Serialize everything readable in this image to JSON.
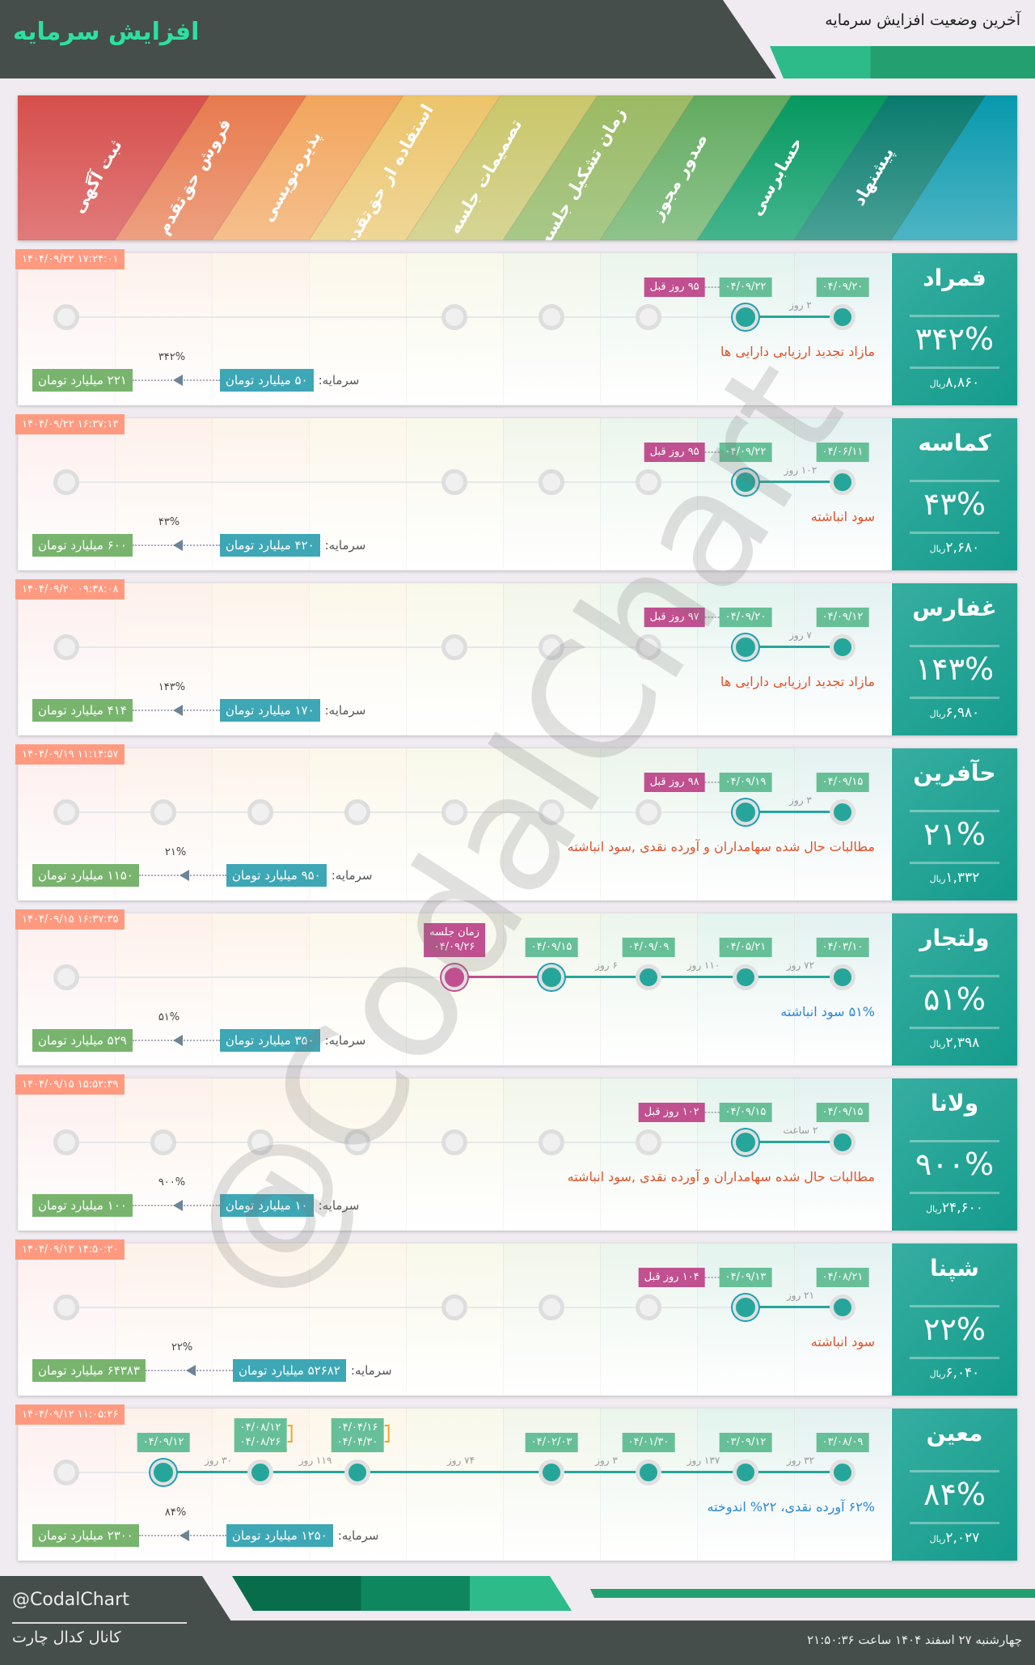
{
  "header": {
    "title": "افزایش سرمایه",
    "subtitle": "آخرین وضعیت افزایش سرمایه"
  },
  "stages": [
    "ثبت آگهی",
    "فروش حق‌تقدم",
    "پذیره‌نویسی",
    "استفاده از حق‌تقدم",
    "تصمیمات جلسه",
    "زمان تشکیل جلسه",
    "صدور مجوز",
    "حسابرسی",
    "پیشنهاد"
  ],
  "colors": {
    "done": "#26a69a",
    "meeting": "#c0508f",
    "date_label": "#67bf98",
    "timestamp": "#ff9a80",
    "capital_current": "#3ea7b6",
    "capital_final": "#78b46e",
    "desc_orange": "#e0522a",
    "desc_blue": "#2e86d4"
  },
  "capital_label": "سرمایه:",
  "currency": "ریال",
  "cards": [
    {
      "name": "فمراد",
      "percent": "۳۴۲%",
      "price": "۸,۸۶۰",
      "timestamp": "۱۴۰۴/۰۹/۲۲ ۱۷:۲۴:۰۱",
      "nodes": [
        "gray",
        "none",
        "none",
        "none",
        "gray",
        "gray",
        "gray",
        "current",
        "done"
      ],
      "labels": [
        {
          "stage": 8,
          "text": "۰۴/۰۹/۲۰"
        },
        {
          "stage": 7,
          "text": "۰۴/۰۹/۲۲",
          "badge": "۹۵ روز قبل"
        }
      ],
      "gaps": [
        {
          "from": 7,
          "to": 8,
          "text": "۲ روز"
        }
      ],
      "desc": "مازاد تجدید ارزیابی دارایی ها",
      "desc_color": "#e0522a",
      "capital_current": "۵۰ میلیارد تومان",
      "capital_final": "۲۲۱ میلیارد تومان",
      "capital_percent": "۳۴۲%"
    },
    {
      "name": "كماسه",
      "percent": "۴۳%",
      "price": "۲,۶۸۰",
      "timestamp": "۱۴۰۴/۰۹/۲۲ ۱۶:۳۷:۱۳",
      "nodes": [
        "gray",
        "none",
        "none",
        "none",
        "gray",
        "gray",
        "gray",
        "current",
        "done"
      ],
      "labels": [
        {
          "stage": 8,
          "text": "۰۴/۰۶/۱۱"
        },
        {
          "stage": 7,
          "text": "۰۴/۰۹/۲۲",
          "badge": "۹۵ روز قبل"
        }
      ],
      "gaps": [
        {
          "from": 7,
          "to": 8,
          "text": "۱۰۲ روز"
        }
      ],
      "desc": "سود انباشته",
      "desc_color": "#e0522a",
      "capital_current": "۴۲۰ میلیارد تومان",
      "capital_final": "۶۰۰ میلیارد تومان",
      "capital_percent": "۴۳%"
    },
    {
      "name": "غفارس",
      "percent": "۱۴۳%",
      "price": "۶,۹۸۰",
      "timestamp": "۱۴۰۴/۰۹/۲۰ ۰۹:۳۸:۰۸",
      "nodes": [
        "gray",
        "none",
        "none",
        "none",
        "gray",
        "gray",
        "gray",
        "current",
        "done"
      ],
      "labels": [
        {
          "stage": 8,
          "text": "۰۴/۰۹/۱۲"
        },
        {
          "stage": 7,
          "text": "۰۴/۰۹/۲۰",
          "badge": "۹۷ روز قبل"
        }
      ],
      "gaps": [
        {
          "from": 7,
          "to": 8,
          "text": "۷ روز"
        }
      ],
      "desc": "مازاد تجدید ارزیابی دارایی ها",
      "desc_color": "#e0522a",
      "capital_current": "۱۷۰ میلیارد تومان",
      "capital_final": "۴۱۴ میلیارد تومان",
      "capital_percent": "۱۴۳%"
    },
    {
      "name": "حآفرین",
      "percent": "۲۱%",
      "price": "۱,۳۳۲",
      "timestamp": "۱۴۰۴/۰۹/۱۹ ۱۱:۱۴:۵۷",
      "nodes": [
        "gray",
        "gray",
        "gray",
        "gray",
        "gray",
        "gray",
        "gray",
        "current",
        "done"
      ],
      "labels": [
        {
          "stage": 8,
          "text": "۰۴/۰۹/۱۵"
        },
        {
          "stage": 7,
          "text": "۰۴/۰۹/۱۹",
          "badge": "۹۸ روز قبل"
        }
      ],
      "gaps": [
        {
          "from": 7,
          "to": 8,
          "text": "۳ روز"
        }
      ],
      "desc": "مطالبات حال شده سهامداران و آورده نقدی ,سود انباشته",
      "desc_color": "#e0522a",
      "capital_current": "۹۵۰ میلیارد تومان",
      "capital_final": "۱۱۵۰ میلیارد تومان",
      "capital_percent": "۲۱%"
    },
    {
      "name": "ولتجار",
      "percent": "۵۱%",
      "price": "۲,۳۹۸",
      "timestamp": "۱۴۰۴/۰۹/۱۵ ۱۶:۳۷:۳۵",
      "nodes": [
        "gray",
        "none",
        "none",
        "none",
        "meeting",
        "current",
        "done",
        "done",
        "done"
      ],
      "labels": [
        {
          "stage": 8,
          "text": "۰۴/۰۳/۱۰"
        },
        {
          "stage": 7,
          "text": "۰۴/۰۵/۲۱"
        },
        {
          "stage": 6,
          "text": "۰۴/۰۹/۰۹"
        },
        {
          "stage": 5,
          "text": "۰۴/۰۹/۱۵"
        },
        {
          "stage": 4,
          "text": "زمان جلسه",
          "text2": "۰۴/۰۹/۲۶",
          "meeting": true
        }
      ],
      "gaps": [
        {
          "from": 7,
          "to": 8,
          "text": "۷۲ روز"
        },
        {
          "from": 6,
          "to": 7,
          "text": "۱۱۰ روز"
        },
        {
          "from": 5,
          "to": 6,
          "text": "۶ روز"
        }
      ],
      "desc": "۵۱% سود انباشته",
      "desc_color": "#2e86d4",
      "capital_current": "۳۵۰ میلیارد تومان",
      "capital_final": "۵۲۹ میلیارد تومان",
      "capital_percent": "۵۱%"
    },
    {
      "name": "ولانا",
      "percent": "۹۰۰%",
      "price": "۲۴,۶۰۰",
      "timestamp": "۱۴۰۴/۰۹/۱۵ ۱۵:۵۲:۳۹",
      "nodes": [
        "gray",
        "gray",
        "gray",
        "gray",
        "gray",
        "gray",
        "gray",
        "current",
        "done"
      ],
      "labels": [
        {
          "stage": 8,
          "text": "۰۴/۰۹/۱۵"
        },
        {
          "stage": 7,
          "text": "۰۴/۰۹/۱۵",
          "badge": "۱۰۲ روز قبل"
        }
      ],
      "gaps": [
        {
          "from": 7,
          "to": 8,
          "text": "۲ ساعت"
        }
      ],
      "desc": "مطالبات حال شده سهامداران و آورده نقدی ,سود انباشته",
      "desc_color": "#e0522a",
      "capital_current": "۱۰ میلیارد تومان",
      "capital_final": "۱۰۰ میلیارد تومان",
      "capital_percent": "۹۰۰%"
    },
    {
      "name": "شپنا",
      "percent": "۲۲%",
      "price": "۶,۰۴۰",
      "timestamp": "۱۴۰۴/۰۹/۱۳ ۱۴:۵۰:۲۰",
      "nodes": [
        "gray",
        "none",
        "none",
        "none",
        "gray",
        "gray",
        "gray",
        "current",
        "done"
      ],
      "labels": [
        {
          "stage": 8,
          "text": "۰۴/۰۸/۲۱"
        },
        {
          "stage": 7,
          "text": "۰۴/۰۹/۱۳",
          "badge": "۱۰۴ روز قبل"
        }
      ],
      "gaps": [
        {
          "from": 7,
          "to": 8,
          "text": "۲۱ روز"
        }
      ],
      "desc": "سود انباشته",
      "desc_color": "#e0522a",
      "capital_current": "۵۲۶۸۲ میلیارد تومان",
      "capital_final": "۶۴۳۸۳ میلیارد تومان",
      "capital_percent": "۲۲%"
    },
    {
      "name": "معین",
      "percent": "۸۴%",
      "price": "۲,۰۲۷",
      "timestamp": "۱۴۰۴/۰۹/۱۲ ۱۱:۰۵:۲۶",
      "nodes": [
        "gray",
        "current",
        "done",
        "done",
        "none",
        "done",
        "done",
        "done",
        "done"
      ],
      "labels": [
        {
          "stage": 8,
          "text": "۰۳/۰۸/۰۹"
        },
        {
          "stage": 7,
          "text": "۰۳/۰۹/۱۲"
        },
        {
          "stage": 6,
          "text": "۰۴/۰۱/۳۰"
        },
        {
          "stage": 5,
          "text": "۰۴/۰۲/۰۳"
        },
        {
          "stage": 3,
          "text": "۰۴/۰۴/۱۶",
          "text2": "۰۴/۰۴/۳۰",
          "bracket": true
        },
        {
          "stage": 2,
          "text": "۰۴/۰۸/۱۲",
          "text2": "۰۴/۰۸/۲۶",
          "bracket": true
        },
        {
          "stage": 1,
          "text": "۰۴/۰۹/۱۲"
        }
      ],
      "gaps": [
        {
          "from": 7,
          "to": 8,
          "text": "۳۲ روز"
        },
        {
          "from": 6,
          "to": 7,
          "text": "۱۳۷ روز"
        },
        {
          "from": 5,
          "to": 6,
          "text": "۳ روز"
        },
        {
          "from": 3,
          "to": 5,
          "text": "۷۴ روز"
        },
        {
          "from": 2,
          "to": 3,
          "text": "۱۱۹ روز"
        },
        {
          "from": 1,
          "to": 2,
          "text": "۳۰ روز"
        }
      ],
      "desc": "۶۲% آورده نقدی، ۲۲% اندوخته",
      "desc_color": "#2e86d4",
      "capital_current": "۱۲۵۰ میلیارد تومان",
      "capital_final": "۲۳۰۰ میلیارد تومان",
      "capital_percent": "۸۴%"
    }
  ],
  "watermark": "@CodalChart",
  "footer": {
    "handle": "@CodalChart",
    "channel": "کانال کدال چارت",
    "date": "چهارشنبه ۲۷ اسفند ۱۴۰۴ ساعت ۲۱:۵۰:۳۶"
  }
}
